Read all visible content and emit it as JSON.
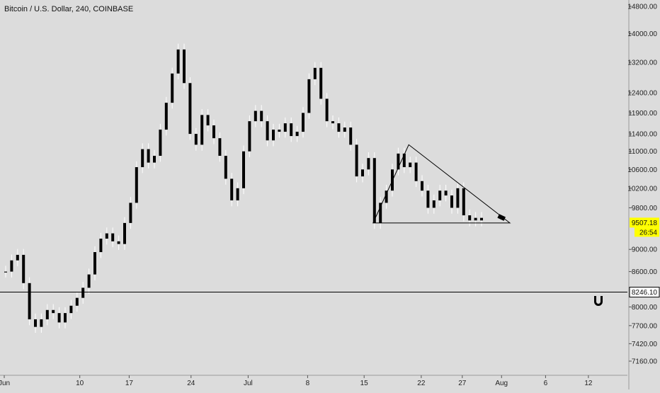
{
  "header": {
    "title": "Bitcoin / U.S. Dollar, 240, COINBASE"
  },
  "price_axis": {
    "ticks": [
      "14800.00",
      "14000.00",
      "13200.00",
      "12400.00",
      "11900.00",
      "11400.00",
      "11000.00",
      "10600.00",
      "10200.00",
      "9800.00",
      "9000.00",
      "8600.00",
      "8000.00",
      "7700.00",
      "7420.00",
      "7160.00"
    ],
    "current_price": "9507.18",
    "countdown": "26:54",
    "hline_price": "8246.10"
  },
  "time_axis": {
    "ticks": [
      "Jun",
      "10",
      "17",
      "24",
      "Jul",
      "8",
      "15",
      "22",
      "27",
      "Aug",
      "6",
      "12"
    ]
  },
  "colors": {
    "background": "#dcdcdc",
    "candle": "#000000",
    "wick": "#ffffff",
    "current_badge": "#ffff00",
    "hline_badge": "#ffffff",
    "line": "#000000"
  },
  "chart_data": {
    "type": "line",
    "title": "Bitcoin / U.S. Dollar, 240, COINBASE",
    "xlabel": "",
    "ylabel": "",
    "log_scale": true,
    "grid": false,
    "ylim": [
      7000,
      15200
    ],
    "x_ticks": [
      "Jun",
      "10",
      "17",
      "24",
      "Jul",
      "8",
      "15",
      "22",
      "27",
      "Aug",
      "6",
      "12"
    ],
    "y_ticks": [
      14800,
      14000,
      13200,
      12400,
      11900,
      11400,
      11000,
      10600,
      10200,
      9800,
      9000,
      8600,
      8000,
      7700,
      7420,
      7160
    ],
    "series": [
      {
        "values": [
          [
            0,
            8600
          ],
          [
            1,
            8800
          ],
          [
            2,
            8900
          ],
          [
            3,
            8400
          ],
          [
            4,
            7800
          ],
          [
            5,
            7680
          ],
          [
            6,
            7800
          ],
          [
            7,
            7950
          ],
          [
            8,
            7900
          ],
          [
            9,
            7750
          ],
          [
            10,
            7900
          ],
          [
            11,
            8020
          ],
          [
            12,
            8150
          ],
          [
            13,
            8320
          ],
          [
            14,
            8550
          ],
          [
            15,
            8950
          ],
          [
            16,
            9200
          ],
          [
            17,
            9300
          ],
          [
            18,
            9150
          ],
          [
            19,
            9100
          ],
          [
            20,
            9500
          ],
          [
            21,
            9900
          ],
          [
            22,
            10650
          ],
          [
            23,
            11050
          ],
          [
            24,
            10750
          ],
          [
            25,
            10900
          ],
          [
            26,
            11500
          ],
          [
            27,
            12150
          ],
          [
            28,
            12900
          ],
          [
            29,
            13550
          ],
          [
            30,
            12650
          ],
          [
            31,
            11400
          ],
          [
            32,
            11150
          ],
          [
            33,
            11850
          ],
          [
            34,
            11600
          ],
          [
            35,
            11300
          ],
          [
            36,
            10900
          ],
          [
            37,
            10400
          ],
          [
            38,
            9950
          ],
          [
            39,
            10200
          ],
          [
            40,
            11000
          ],
          [
            41,
            11700
          ],
          [
            42,
            11950
          ],
          [
            43,
            11700
          ],
          [
            44,
            11250
          ],
          [
            45,
            11500
          ],
          [
            46,
            11450
          ],
          [
            47,
            11650
          ],
          [
            48,
            11350
          ],
          [
            49,
            11450
          ],
          [
            50,
            11900
          ],
          [
            51,
            12750
          ],
          [
            52,
            13050
          ],
          [
            53,
            12250
          ],
          [
            54,
            11700
          ],
          [
            55,
            11650
          ],
          [
            56,
            11450
          ],
          [
            57,
            11550
          ],
          [
            58,
            11150
          ],
          [
            59,
            10450
          ],
          [
            60,
            10600
          ],
          [
            61,
            10850
          ],
          [
            62,
            9500
          ],
          [
            63,
            9900
          ],
          [
            64,
            10150
          ],
          [
            65,
            10600
          ],
          [
            66,
            10950
          ],
          [
            67,
            10650
          ],
          [
            68,
            10750
          ],
          [
            69,
            10350
          ],
          [
            70,
            10150
          ],
          [
            71,
            9800
          ],
          [
            72,
            9950
          ],
          [
            73,
            10150
          ],
          [
            74,
            10050
          ],
          [
            75,
            9800
          ],
          [
            76,
            10200
          ],
          [
            77,
            9650
          ],
          [
            78,
            9550
          ],
          [
            79,
            9600
          ],
          [
            80,
            9550
          ]
        ]
      }
    ],
    "annotations": [
      "horizontal line at 8246.10",
      "triangle drawing from Jul 16 to Aug 1",
      "current price 9507.18",
      "bar countdown 26:54"
    ]
  }
}
